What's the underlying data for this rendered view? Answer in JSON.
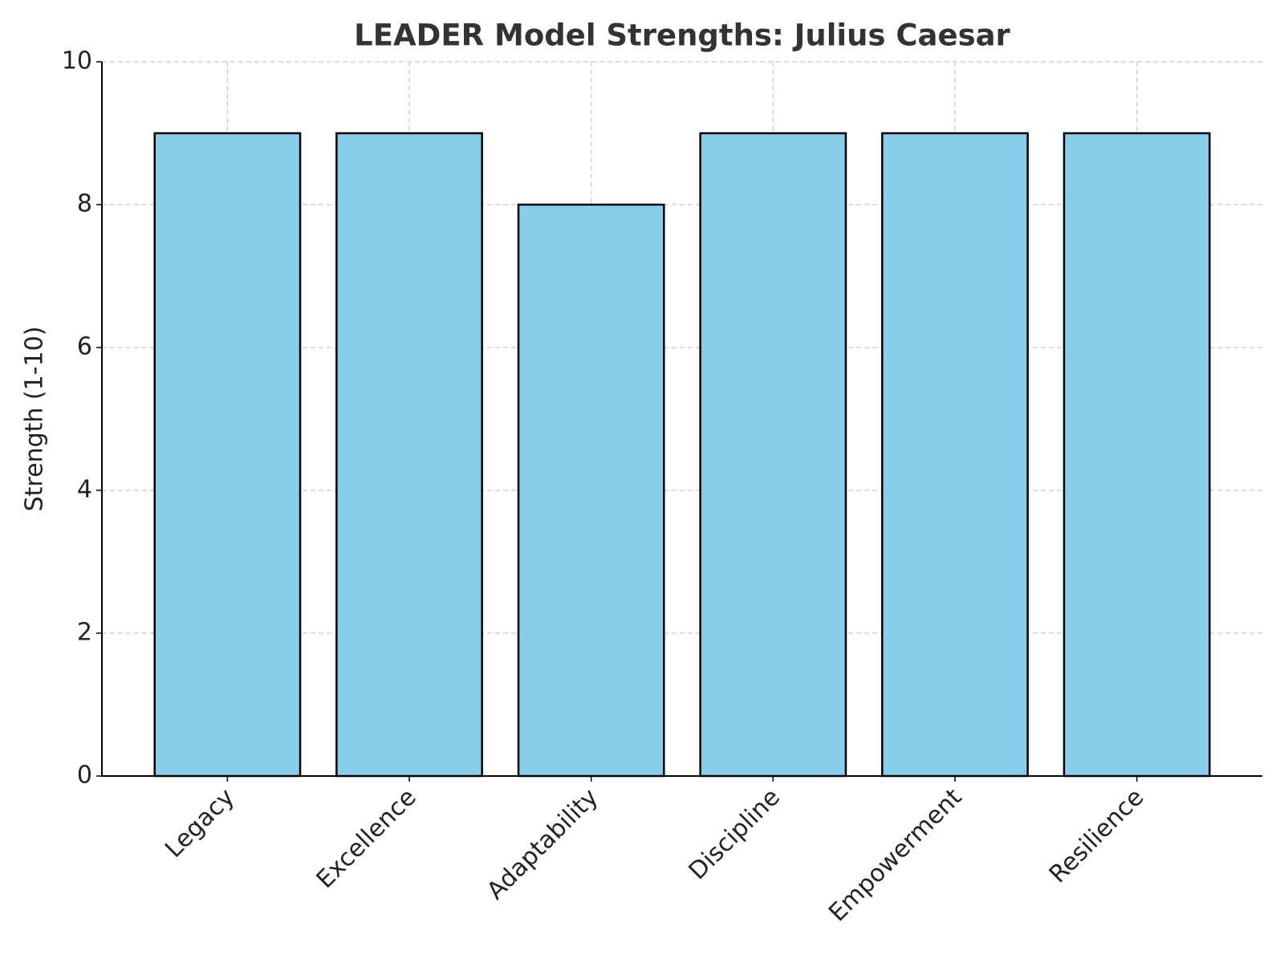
{
  "chart_data": {
    "type": "bar",
    "title": "LEADER Model Strengths: Julius Caesar",
    "y_label": "Strength (1-10)",
    "categories": [
      "Legacy",
      "Excellence",
      "Adaptability",
      "Discipline",
      "Empowerment",
      "Resilience"
    ],
    "values": [
      9,
      9,
      8,
      9,
      9,
      9
    ],
    "color": "#87ceeb",
    "edge_color": "#000000",
    "ylim": [
      0,
      10
    ],
    "yticks": [
      0,
      2,
      4,
      6,
      8,
      10
    ],
    "grid": true
  }
}
